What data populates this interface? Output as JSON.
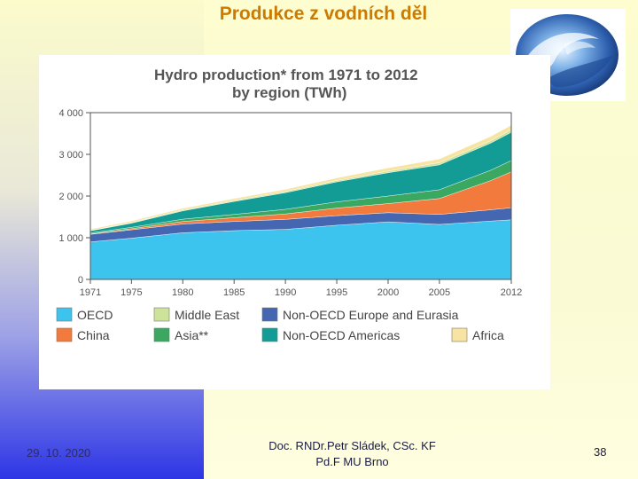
{
  "slide": {
    "title": "Produkce z vodních děl",
    "date": "29. 10. 2020",
    "author_line1": "Doc. RNDr.Petr Sládek, CSc. KF",
    "author_line2": "Pd.F MU Brno",
    "page_number": "38"
  },
  "chart_data": {
    "type": "area",
    "stacked": true,
    "title": "Hydro production* from 1971 to 2012",
    "subtitle": "by region (TWh)",
    "x_ticks": [
      "1971",
      "1975",
      "1980",
      "1985",
      "1990",
      "1995",
      "2000",
      "2005",
      "2012"
    ],
    "y_ticks": [
      "0",
      "1 000",
      "2 000",
      "3 000",
      "4 000"
    ],
    "ylim": [
      0,
      4000
    ],
    "xlim": [
      1971,
      2012
    ],
    "grid": false,
    "legend_position": "bottom",
    "x": [
      1971,
      1975,
      1980,
      1985,
      1990,
      1995,
      2000,
      2005,
      2010,
      2012
    ],
    "series": [
      {
        "name": "OECD",
        "color": "#3cc3ee",
        "values": [
          900,
          990,
          1120,
          1170,
          1200,
          1300,
          1380,
          1320,
          1400,
          1430
        ]
      },
      {
        "name": "Non-OECD Europe and Eurasia",
        "color": "#4566b0",
        "values": [
          180,
          200,
          210,
          220,
          240,
          230,
          220,
          240,
          270,
          290
        ]
      },
      {
        "name": "China",
        "color": "#f27a3c",
        "values": [
          10,
          25,
          60,
          90,
          130,
          180,
          220,
          380,
          700,
          860
        ]
      },
      {
        "name": "Asia**",
        "color": "#3aa860",
        "values": [
          25,
          35,
          55,
          80,
          110,
          150,
          180,
          210,
          250,
          270
        ]
      },
      {
        "name": "Non-OECD Americas",
        "color": "#129c95",
        "values": [
          50,
          100,
          200,
          310,
          400,
          480,
          560,
          600,
          650,
          680
        ]
      },
      {
        "name": "Middle East",
        "color": "#cde39a",
        "values": [
          10,
          15,
          20,
          25,
          30,
          35,
          40,
          50,
          55,
          60
        ]
      },
      {
        "name": "Africa",
        "color": "#f7e3a2",
        "values": [
          30,
          35,
          40,
          45,
          50,
          60,
          75,
          90,
          105,
          110
        ]
      }
    ],
    "legend": [
      {
        "name": "OECD",
        "color": "#3cc3ee"
      },
      {
        "name": "Middle East",
        "color": "#cde39a"
      },
      {
        "name": "Non-OECD Europe and Eurasia",
        "color": "#4566b0"
      },
      {
        "name": "China",
        "color": "#f27a3c"
      },
      {
        "name": "Asia**",
        "color": "#3aa860"
      },
      {
        "name": "Non-OECD Americas",
        "color": "#129c95"
      },
      {
        "name": "Africa",
        "color": "#f7e3a2"
      }
    ]
  }
}
